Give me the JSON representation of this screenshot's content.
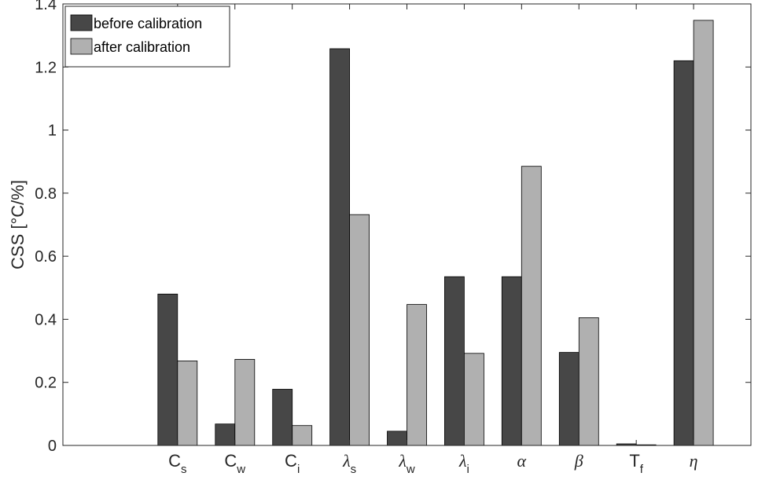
{
  "chart_data": {
    "type": "bar",
    "ylabel": "CSS [°C/%]",
    "ylim": [
      0,
      1.4
    ],
    "yticks": [
      "0",
      "0.2",
      "0.4",
      "0.6",
      "0.8",
      "1",
      "1.2",
      "1.4"
    ],
    "categories": [
      {
        "main": "C",
        "sub": "s",
        "greek": false
      },
      {
        "main": "C",
        "sub": "w",
        "greek": false
      },
      {
        "main": "C",
        "sub": "i",
        "greek": false
      },
      {
        "main": "λ",
        "sub": "s",
        "greek": true
      },
      {
        "main": "λ",
        "sub": "w",
        "greek": true
      },
      {
        "main": "λ",
        "sub": "i",
        "greek": true
      },
      {
        "main": "α",
        "sub": "",
        "greek": true
      },
      {
        "main": "β",
        "sub": "",
        "greek": true
      },
      {
        "main": "T",
        "sub": "f",
        "greek": false
      },
      {
        "main": "η",
        "sub": "",
        "greek": true
      }
    ],
    "series": [
      {
        "name": "before calibration",
        "color": "#474747",
        "values": [
          0.48,
          0.068,
          0.178,
          1.258,
          0.045,
          0.535,
          0.535,
          0.295,
          0.005,
          1.22
        ]
      },
      {
        "name": "after calibration",
        "color": "#b0b0b0",
        "values": [
          0.268,
          0.273,
          0.063,
          0.732,
          0.447,
          0.292,
          0.885,
          0.405,
          0.002,
          1.348
        ]
      }
    ],
    "legend_position": "top-left",
    "grid": false
  }
}
